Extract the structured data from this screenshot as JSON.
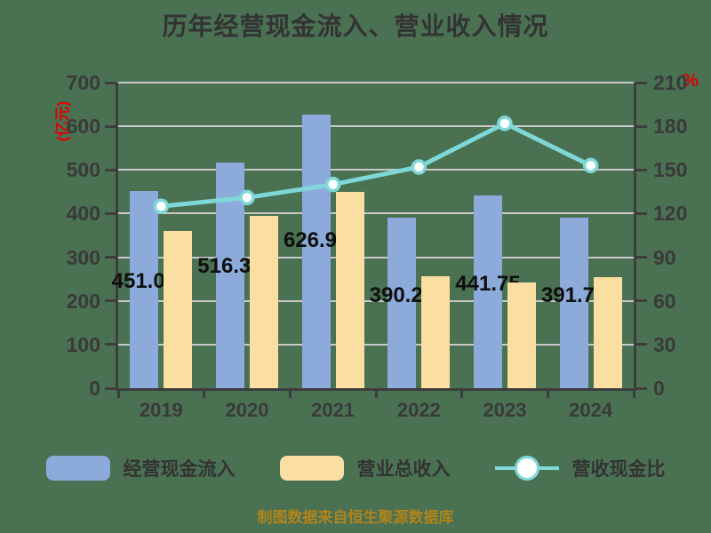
{
  "title": "历年经营现金流入、营业收入情况",
  "footer": "制图数据来自恒生聚源数据库",
  "chart_data": {
    "type": "bar+line combo",
    "categories": [
      "2019",
      "2020",
      "2021",
      "2022",
      "2023",
      "2024"
    ],
    "series": [
      {
        "name": "经营现金流入",
        "type": "bar",
        "axis": "left",
        "color": "#8CABDB",
        "values": [
          451.04,
          516.33,
          626.93,
          390.28,
          441.75,
          391.72
        ],
        "labels": [
          "451.04",
          "516.33",
          "626.93",
          "390.28",
          "441.75",
          "391.72"
        ]
      },
      {
        "name": "营业总收入",
        "type": "bar",
        "axis": "left",
        "color": "#FBDEA2",
        "values": [
          360,
          395,
          450,
          257,
          243,
          255
        ]
      },
      {
        "name": "营收现金比",
        "type": "line",
        "axis": "right",
        "color": "#7FD8D8",
        "marker": "circle-white-fill",
        "values": [
          125,
          131,
          140,
          152,
          182,
          153
        ]
      }
    ],
    "left_axis": {
      "label": "(亿元)",
      "min": 0,
      "max": 700,
      "step": 100
    },
    "right_axis": {
      "label": "%",
      "min": 0,
      "max": 210,
      "step": 30
    },
    "grid": true,
    "legend_position": "bottom"
  },
  "legend": {
    "items": [
      {
        "label": "经营现金流入",
        "swatch": "bar",
        "color": "#8CABDB"
      },
      {
        "label": "营业总收入",
        "swatch": "bar",
        "color": "#FBDEA2"
      },
      {
        "label": "营收现金比",
        "swatch": "line",
        "color": "#7FD8D8"
      }
    ]
  },
  "colors": {
    "background": "#4A7152",
    "axis_line": "#3D3D3D",
    "gridline": "#C9C9C9",
    "tick_text": "#3A3A3A",
    "bar_label_text": "#0E0E0E",
    "axis_unit_red": "#E00000",
    "footer_gold": "#AF841C",
    "line_marker_fill": "#FFFFFF"
  }
}
